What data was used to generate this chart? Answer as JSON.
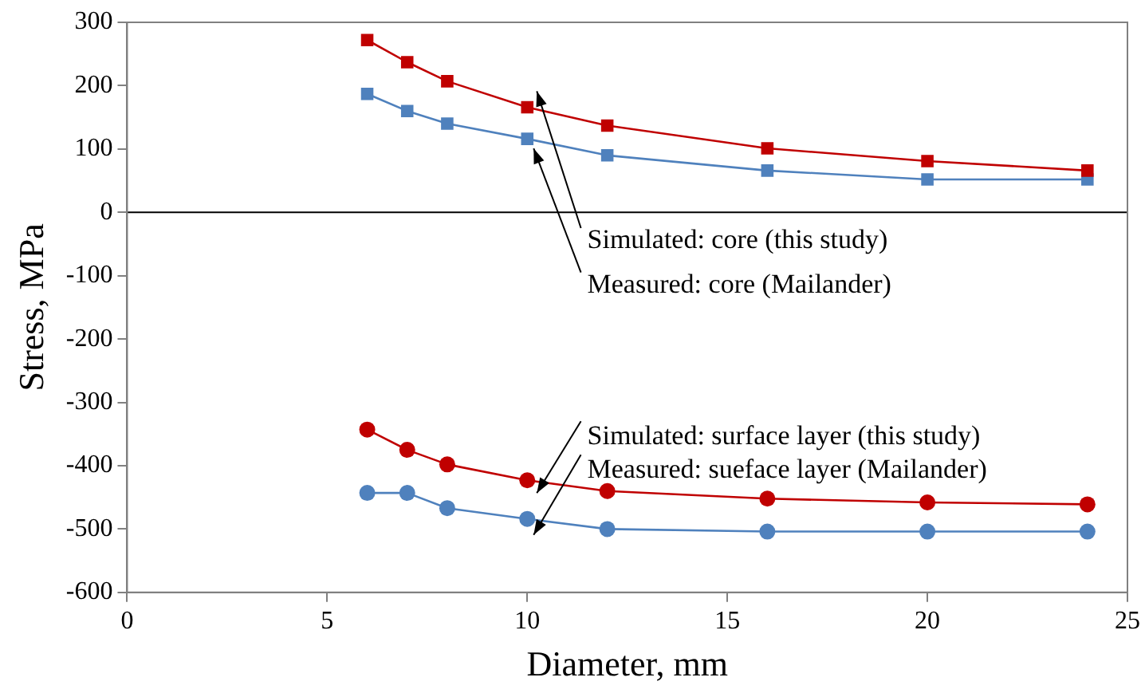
{
  "chart_data": {
    "type": "line",
    "xlabel": "Diameter, mm",
    "ylabel": "Stress, MPa",
    "xlim": [
      0,
      25
    ],
    "xticks": [
      0,
      5,
      10,
      15,
      20,
      25
    ],
    "ylim": [
      -600,
      300
    ],
    "yticks": [
      -600,
      -500,
      -400,
      -300,
      -200,
      -100,
      0,
      100,
      200,
      300
    ],
    "grid": false,
    "legend": false,
    "ref_lines": [
      {
        "axis": "y",
        "value": 0,
        "color": "#000000"
      }
    ],
    "series": [
      {
        "name": "Simulated: core (this study)",
        "color": "#c00000",
        "marker": "square",
        "x": [
          6,
          7,
          8,
          10,
          12,
          16,
          20,
          24
        ],
        "values": [
          272,
          237,
          207,
          166,
          137,
          101,
          81,
          66
        ]
      },
      {
        "name": "Measured: core (Mailander)",
        "color": "#4f81bd",
        "marker": "square",
        "x": [
          6,
          7,
          8,
          10,
          12,
          16,
          20,
          24
        ],
        "values": [
          187,
          160,
          140,
          116,
          90,
          66,
          52,
          52
        ]
      },
      {
        "name": "Simulated: surface layer (this study)",
        "color": "#c00000",
        "marker": "circle",
        "x": [
          6,
          7,
          8,
          10,
          12,
          16,
          20,
          24
        ],
        "values": [
          -343,
          -375,
          -398,
          -423,
          -440,
          -452,
          -458,
          -461
        ]
      },
      {
        "name": "Measured: sueface layer (Mailander)",
        "color": "#4f81bd",
        "marker": "circle",
        "x": [
          6,
          7,
          8,
          10,
          12,
          16,
          20,
          24
        ],
        "values": [
          -443,
          -443,
          -467,
          -484,
          -500,
          -504,
          -504,
          -504
        ]
      }
    ]
  }
}
